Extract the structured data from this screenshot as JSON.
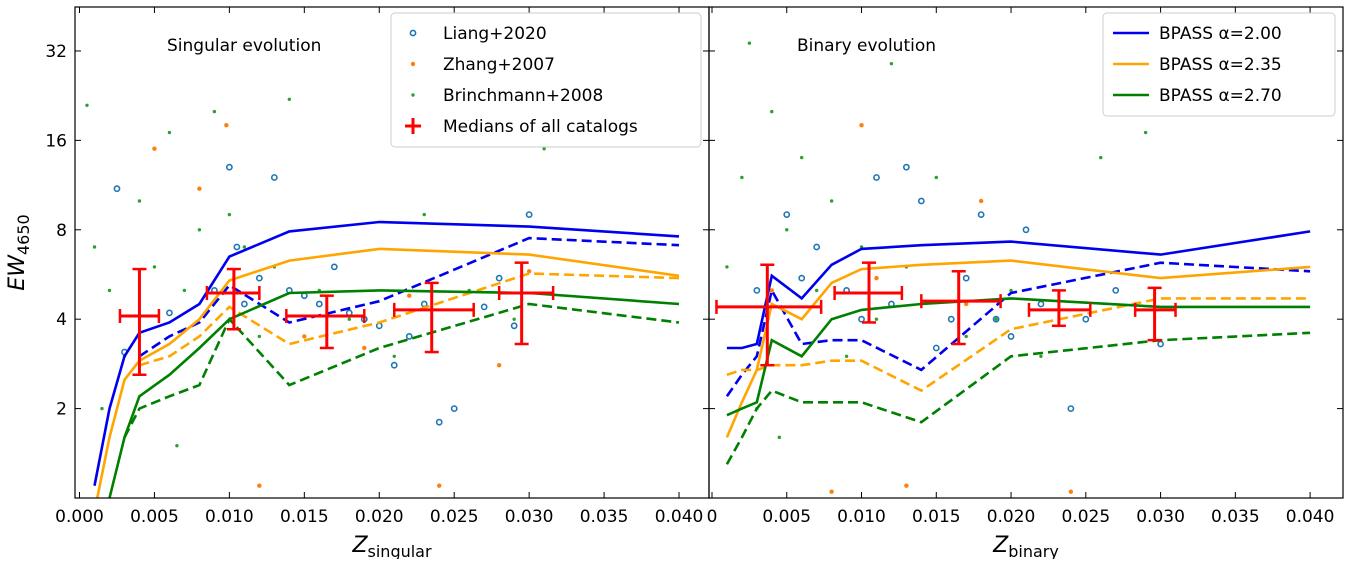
{
  "chart_data": [
    {
      "type": "scatter",
      "annotation": "Singular evolution",
      "xlabel": "Z",
      "xlabel_sub": "singular",
      "ylabel": "EW",
      "ylabel_sub": "4650",
      "xlim": [
        -0.0003,
        0.042
      ],
      "ylim": [
        1,
        45
      ],
      "log_y": true,
      "legend": "upper right",
      "xticks": [
        {
          "value": 0,
          "label": "0.000"
        },
        0.005,
        {
          "value": 0.01,
          "label": "0.010"
        },
        0.015,
        {
          "value": 0.02,
          "label": "0.020"
        },
        0.025,
        {
          "value": 0.03,
          "label": "0.030"
        },
        0.035,
        {
          "value": 0.04,
          "label": "0.040"
        }
      ],
      "yticks": [
        2,
        4,
        8,
        16,
        32
      ],
      "series": [
        {
          "name": "Liang+2020",
          "kind": "points",
          "style": "open",
          "color": "#1f77b4",
          "x": [
            0.0025,
            0.006,
            0.009,
            0.01,
            0.0105,
            0.011,
            0.012,
            0.013,
            0.014,
            0.015,
            0.016,
            0.017,
            0.018,
            0.019,
            0.02,
            0.021,
            0.022,
            0.023,
            0.024,
            0.025,
            0.027,
            0.028,
            0.029,
            0.03,
            0.003
          ],
          "values": [
            11,
            4.2,
            5,
            13,
            7,
            4.5,
            5.5,
            12,
            5,
            4.8,
            4.5,
            6,
            4.2,
            4,
            3.8,
            2.8,
            3.5,
            4.5,
            1.8,
            2,
            4.4,
            5.5,
            3.8,
            9,
            3.1
          ]
        },
        {
          "name": "Zhang+2007",
          "kind": "points",
          "style": "small",
          "color": "#ff7f0e",
          "x": [
            0.005,
            0.008,
            0.0098,
            0.012,
            0.015,
            0.019,
            0.022,
            0.024,
            0.028,
            0.03
          ],
          "values": [
            15,
            11,
            18,
            1.1,
            3.5,
            3.2,
            4.8,
            1.1,
            2.8,
            5.8
          ]
        },
        {
          "name": "Brinchmann+2008",
          "kind": "points",
          "style": "tiny",
          "color": "#2ca02c",
          "x": [
            0.0005,
            0.001,
            0.002,
            0.003,
            0.004,
            0.005,
            0.006,
            0.007,
            0.008,
            0.009,
            0.01,
            0.011,
            0.012,
            0.013,
            0.014,
            0.016,
            0.018,
            0.021,
            0.023,
            0.026,
            0.029,
            0.031,
            0.0015,
            0.0065
          ],
          "values": [
            21,
            7,
            5,
            3,
            10,
            6,
            17,
            5,
            8,
            20,
            9,
            7,
            3.5,
            6,
            22,
            5,
            4,
            3,
            9,
            5,
            4,
            15,
            2,
            1.5
          ]
        },
        {
          "kind": "line",
          "dash": false,
          "color": "#0000ee",
          "x": [
            0.001,
            0.002,
            0.003,
            0.004,
            0.006,
            0.008,
            0.01,
            0.014,
            0.02,
            0.03,
            0.04
          ],
          "values": [
            1.1,
            2.0,
            3.0,
            3.6,
            3.9,
            4.5,
            6.5,
            7.9,
            8.5,
            8.2,
            7.6
          ]
        },
        {
          "kind": "line",
          "dash": true,
          "color": "#0000ee",
          "x": [
            0.001,
            0.002,
            0.003,
            0.004,
            0.006,
            0.008,
            0.01,
            0.014,
            0.02,
            0.03,
            0.04
          ],
          "values": [
            null,
            null,
            null,
            3.0,
            3.5,
            3.9,
            5.2,
            3.9,
            4.6,
            7.5,
            7.1
          ]
        },
        {
          "kind": "line",
          "dash": false,
          "color": "#ffa500",
          "x": [
            0.001,
            0.002,
            0.003,
            0.004,
            0.006,
            0.008,
            0.01,
            0.014,
            0.02,
            0.03,
            0.04
          ],
          "values": [
            0.9,
            1.6,
            2.5,
            2.9,
            3.3,
            4.0,
            5.4,
            6.3,
            6.9,
            6.6,
            5.6
          ]
        },
        {
          "kind": "line",
          "dash": true,
          "color": "#ffa500",
          "x": [
            0.001,
            0.002,
            0.003,
            0.004,
            0.006,
            0.008,
            0.01,
            0.014,
            0.02,
            0.03,
            0.04
          ],
          "values": [
            null,
            null,
            null,
            2.8,
            3.0,
            3.5,
            4.4,
            3.3,
            3.9,
            5.7,
            5.5
          ]
        },
        {
          "kind": "line",
          "dash": false,
          "color": "#008000",
          "x": [
            0.001,
            0.002,
            0.003,
            0.004,
            0.006,
            0.008,
            0.01,
            0.014,
            0.02,
            0.03,
            0.04
          ],
          "values": [
            null,
            1.0,
            1.6,
            2.2,
            2.6,
            3.2,
            4.0,
            4.9,
            5.0,
            4.9,
            4.5
          ]
        },
        {
          "kind": "line",
          "dash": true,
          "color": "#008000",
          "x": [
            0.001,
            0.002,
            0.003,
            0.004,
            0.006,
            0.008,
            0.01,
            0.014,
            0.02,
            0.03,
            0.04
          ],
          "values": [
            null,
            null,
            1.6,
            2.0,
            2.2,
            2.4,
            4.0,
            2.4,
            3.2,
            4.5,
            3.9
          ]
        }
      ],
      "medians": {
        "name": "Medians of all catalogs",
        "color": "#ff0000",
        "x": [
          0.004,
          0.0103,
          0.0165,
          0.0235,
          0.0295
        ],
        "values": [
          4.1,
          4.9,
          4.1,
          4.3,
          4.9
        ],
        "x_low": [
          0.0027,
          0.0085,
          0.0138,
          0.021,
          0.028
        ],
        "x_high": [
          0.0053,
          0.012,
          0.019,
          0.0263,
          0.0316
        ],
        "y_low": [
          2.6,
          3.7,
          3.2,
          3.1,
          3.3
        ],
        "y_high": [
          5.9,
          5.9,
          4.8,
          5.3,
          6.2
        ]
      }
    },
    {
      "type": "scatter",
      "annotation": "Binary evolution",
      "xlabel": "Z",
      "xlabel_sub": "binary",
      "xlim": [
        -0.0002,
        0.0422
      ],
      "ylim": [
        1,
        45
      ],
      "log_y": true,
      "legend": "upper right",
      "xticks": [
        0,
        0.005,
        {
          "value": 0.01,
          "label": "0.010"
        },
        0.015,
        {
          "value": 0.02,
          "label": "0.020"
        },
        0.025,
        {
          "value": 0.03,
          "label": "0.030"
        },
        0.035,
        {
          "value": 0.04,
          "label": "0.040"
        }
      ],
      "series": [
        {
          "kind": "points",
          "style": "open",
          "color": "#1f77b4",
          "x": [
            0.003,
            0.005,
            0.007,
            0.009,
            0.01,
            0.011,
            0.012,
            0.013,
            0.014,
            0.015,
            0.016,
            0.017,
            0.018,
            0.019,
            0.02,
            0.021,
            0.022,
            0.024,
            0.025,
            0.027,
            0.03,
            0.006
          ],
          "values": [
            5,
            9,
            7,
            5,
            4,
            12,
            4.5,
            13,
            10,
            3.2,
            4,
            5.5,
            9,
            4,
            3.5,
            8,
            4.5,
            2,
            4,
            5,
            3.3,
            5.5
          ]
        },
        {
          "kind": "points",
          "style": "small",
          "color": "#ff7f0e",
          "x": [
            0.004,
            0.01,
            0.011,
            0.013,
            0.008,
            0.018,
            0.024,
            0.017
          ],
          "values": [
            5,
            18,
            5.5,
            1.1,
            1.05,
            10,
            1.05,
            4.5
          ]
        },
        {
          "kind": "points",
          "style": "tiny",
          "color": "#2ca02c",
          "x": [
            0.001,
            0.002,
            0.0025,
            0.004,
            0.005,
            0.006,
            0.007,
            0.008,
            0.009,
            0.01,
            0.011,
            0.012,
            0.013,
            0.015,
            0.017,
            0.019,
            0.02,
            0.022,
            0.026,
            0.029,
            0.003,
            0.0045
          ],
          "values": [
            6,
            12,
            34,
            20,
            8,
            14,
            5,
            10,
            3,
            7,
            4,
            29,
            6,
            12,
            3.5,
            4,
            5,
            3,
            14,
            17,
            2,
            1.6
          ]
        },
        {
          "name": "BPASS α=2.00",
          "kind": "line",
          "dash": false,
          "color": "#0000ee",
          "x": [
            0.001,
            0.002,
            0.003,
            0.004,
            0.006,
            0.008,
            0.01,
            0.014,
            0.02,
            0.03,
            0.04
          ],
          "values": [
            3.2,
            3.2,
            3.3,
            5.6,
            4.7,
            6.1,
            6.9,
            7.1,
            7.3,
            6.6,
            7.9
          ]
        },
        {
          "kind": "line",
          "dash": true,
          "color": "#0000ee",
          "x": [
            0.001,
            0.002,
            0.003,
            0.004,
            0.006,
            0.008,
            0.01,
            0.014,
            0.02,
            0.03,
            0.04
          ],
          "values": [
            2.2,
            2.6,
            3.0,
            5.0,
            3.3,
            3.4,
            3.4,
            2.7,
            4.9,
            6.2,
            5.8
          ]
        },
        {
          "name": "BPASS α=2.35",
          "kind": "line",
          "dash": false,
          "color": "#ffa500",
          "x": [
            0.001,
            0.002,
            0.003,
            0.004,
            0.006,
            0.008,
            0.01,
            0.014,
            0.02,
            0.03,
            0.04
          ],
          "values": [
            1.6,
            2.1,
            2.7,
            4.5,
            4.0,
            5.3,
            5.9,
            6.1,
            6.3,
            5.5,
            6.0
          ]
        },
        {
          "kind": "line",
          "dash": true,
          "color": "#ffa500",
          "x": [
            0.001,
            0.002,
            0.003,
            0.004,
            0.006,
            0.008,
            0.01,
            0.014,
            0.02,
            0.03,
            0.04
          ],
          "values": [
            2.6,
            2.7,
            2.7,
            2.8,
            2.8,
            2.9,
            2.9,
            2.3,
            3.7,
            4.7,
            4.7
          ]
        },
        {
          "name": "BPASS α=2.70",
          "kind": "line",
          "dash": false,
          "color": "#008000",
          "x": [
            0.001,
            0.002,
            0.003,
            0.004,
            0.006,
            0.008,
            0.01,
            0.014,
            0.02,
            0.03,
            0.04
          ],
          "values": [
            1.9,
            2.0,
            2.1,
            3.4,
            3.0,
            4.0,
            4.3,
            4.5,
            4.7,
            4.4,
            4.4
          ]
        },
        {
          "kind": "line",
          "dash": true,
          "color": "#008000",
          "x": [
            0.001,
            0.002,
            0.003,
            0.004,
            0.006,
            0.008,
            0.01,
            0.014,
            0.02,
            0.03,
            0.04
          ],
          "values": [
            1.3,
            1.6,
            2.0,
            2.3,
            2.1,
            2.1,
            2.1,
            1.8,
            3.0,
            3.4,
            3.6
          ]
        }
      ],
      "medians": {
        "color": "#ff0000",
        "x": [
          0.0037,
          0.0105,
          0.0165,
          0.0232,
          0.0296
        ],
        "values": [
          4.4,
          4.9,
          4.6,
          4.3,
          4.3
        ],
        "x_low": [
          0.0003,
          0.0082,
          0.014,
          0.0212,
          0.0283
        ],
        "x_high": [
          0.0073,
          0.0127,
          0.0193,
          0.0253,
          0.031
        ],
        "y_low": [
          2.8,
          3.9,
          3.3,
          3.8,
          3.4
        ],
        "y_high": [
          6.1,
          6.2,
          5.8,
          5.0,
          5.1
        ]
      }
    }
  ]
}
